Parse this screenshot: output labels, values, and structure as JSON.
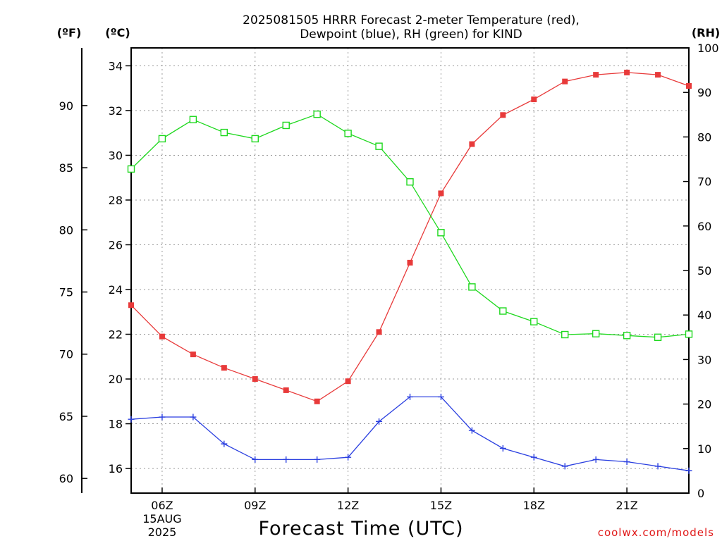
{
  "chart_data": {
    "type": "line",
    "title_lines": [
      "2025081505 HRRR Forecast 2-meter Temperature (red),",
      "Dewpoint (blue), RH (green) for KIND"
    ],
    "xlabel": "Forecast Time (UTC)",
    "credit": "coolwx.com/models",
    "units": {
      "fahrenheit": "(ºF)",
      "celsius": "(ºC)",
      "rh": "(RH)"
    },
    "x_hours": [
      5,
      6,
      7,
      8,
      9,
      10,
      11,
      12,
      13,
      14,
      15,
      16,
      17,
      18,
      19,
      20,
      21,
      22,
      23
    ],
    "xlim": [
      5,
      23
    ],
    "x_ticks": [
      {
        "hour": 6,
        "label": "06Z",
        "sub1": "15AUG",
        "sub2": "2025"
      },
      {
        "hour": 9,
        "label": "09Z"
      },
      {
        "hour": 12,
        "label": "12Z"
      },
      {
        "hour": 15,
        "label": "15Z"
      },
      {
        "hour": 18,
        "label": "18Z"
      },
      {
        "hour": 21,
        "label": "21Z"
      }
    ],
    "celsius_axis": {
      "range": [
        14.9,
        34.8
      ],
      "ticks": [
        "16",
        "18",
        "20",
        "22",
        "24",
        "26",
        "28",
        "30",
        "32",
        "34"
      ]
    },
    "fahrenheit_axis": {
      "ticks": [
        "60",
        "65",
        "70",
        "75",
        "80",
        "85",
        "90"
      ]
    },
    "rh_axis": {
      "range": [
        0,
        100
      ],
      "ticks": [
        "0",
        "10",
        "20",
        "30",
        "40",
        "50",
        "60",
        "70",
        "80",
        "90",
        "100"
      ]
    },
    "grid": true,
    "series": [
      {
        "name": "Temperature",
        "axis": "celsius",
        "color": "#e83a3a",
        "marker": "filled-square",
        "values": [
          23.3,
          21.9,
          21.1,
          20.5,
          20.0,
          19.5,
          19.0,
          19.9,
          22.1,
          25.2,
          28.3,
          30.5,
          31.8,
          32.5,
          33.3,
          33.6,
          33.7,
          33.6,
          33.1
        ]
      },
      {
        "name": "Dewpoint",
        "axis": "celsius",
        "color": "#2a3fe0",
        "marker": "plus",
        "values": [
          18.2,
          18.3,
          18.3,
          17.1,
          16.4,
          16.4,
          16.4,
          16.5,
          18.1,
          19.2,
          19.2,
          17.7,
          16.9,
          16.5,
          16.1,
          16.4,
          16.3,
          16.1,
          15.9
        ]
      },
      {
        "name": "RH",
        "axis": "rh",
        "color": "#1ed81e",
        "marker": "open-square",
        "values": [
          72.8,
          79.6,
          83.9,
          81.0,
          79.6,
          82.6,
          85.1,
          80.8,
          77.9,
          69.9,
          58.5,
          46.3,
          40.9,
          38.5,
          35.6,
          35.8,
          35.4,
          35.0,
          35.7
        ]
      }
    ]
  }
}
